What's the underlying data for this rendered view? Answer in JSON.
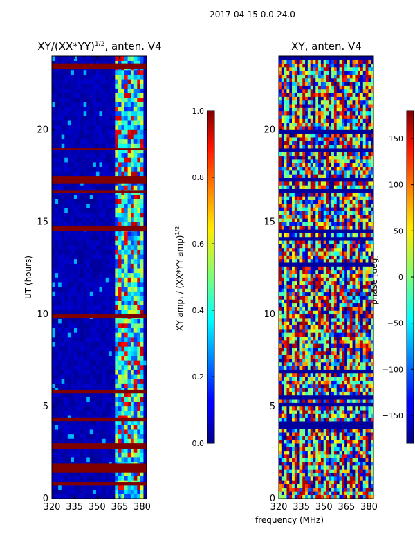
{
  "figure": {
    "suptitle": "2017-04-15 0.0-24.0"
  },
  "colormap": "jet",
  "chart_data": [
    {
      "type": "heatmap",
      "title_base": "XY/(XX*YY)",
      "title_exp": "1/2",
      "title_suffix": ", anten. V4",
      "xlabel": "",
      "ylabel": "UT (hours)",
      "xlim": [
        320,
        383
      ],
      "ylim": [
        0,
        24
      ],
      "xticks": [
        320,
        335,
        350,
        365,
        380
      ],
      "yticks": [
        0,
        5,
        10,
        15,
        20
      ],
      "colorbar": {
        "label_base": "XY amp. / (XX*YY amp)",
        "label_exp": "1/2",
        "range": [
          0.0,
          1.0
        ],
        "ticks": [
          "0.0",
          "0.2",
          "0.4",
          "0.6",
          "0.8",
          "1.0"
        ]
      },
      "flagged_hours_bands": [
        [
          23.3,
          23.6
        ],
        [
          18.9,
          19.0
        ],
        [
          17.1,
          17.5
        ],
        [
          16.6,
          16.7
        ],
        [
          14.5,
          14.8
        ],
        [
          9.8,
          10.0
        ],
        [
          5.7,
          5.9
        ],
        [
          4.2,
          4.4
        ],
        [
          2.7,
          3.0
        ],
        [
          1.4,
          1.9
        ],
        [
          0.7,
          0.9
        ]
      ],
      "active_band_mhz": [
        360,
        380
      ]
    },
    {
      "type": "heatmap",
      "title": "XY, anten. V4",
      "xlabel": "frequency (MHz)",
      "ylabel": "",
      "xlim": [
        320,
        383
      ],
      "ylim": [
        0,
        24
      ],
      "xticks": [
        320,
        335,
        350,
        365,
        380
      ],
      "yticks": [
        0,
        5,
        10,
        15,
        20
      ],
      "colorbar": {
        "label": "phase [deg]",
        "range": [
          -180,
          180
        ],
        "ticks": [
          "-150",
          "-100",
          "-50",
          "0",
          "50",
          "100",
          "150"
        ]
      }
    }
  ]
}
